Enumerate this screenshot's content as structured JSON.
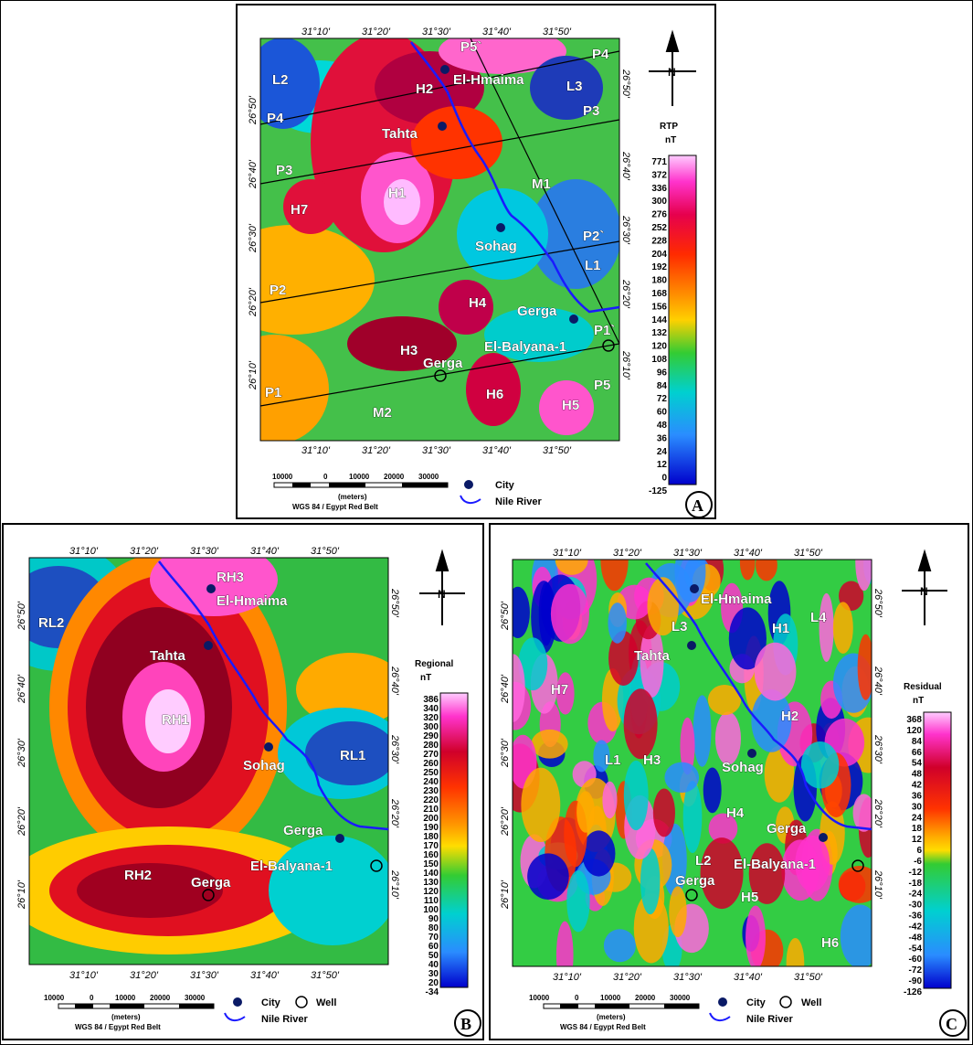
{
  "panels": {
    "A": {
      "letter": "A",
      "colorbar": {
        "title": "RTP",
        "unit": "nT",
        "ticks": [
          "771",
          "372",
          "336",
          "300",
          "276",
          "252",
          "228",
          "204",
          "192",
          "180",
          "168",
          "156",
          "144",
          "132",
          "120",
          "108",
          "96",
          "84",
          "72",
          "60",
          "48",
          "36",
          "24",
          "12",
          "0",
          "-125"
        ]
      },
      "top_lon": [
        "31°10'",
        "31°20'",
        "31°30'",
        "31°40'",
        "31°50'"
      ],
      "bottom_lon": [
        "31°10'",
        "31°20'",
        "31°30'",
        "31°40'",
        "31°50'"
      ],
      "left_lat": [
        "26°50'",
        "26°40'",
        "26°30'",
        "26°20'",
        "26°10'"
      ],
      "right_lat": [
        "26°50'",
        "26°40'",
        "26°30'",
        "26°20'",
        "26°10'"
      ],
      "labels": [
        "L2",
        "P4",
        "H2",
        "El-Hmaima",
        "P5`",
        "P4",
        "L3",
        "P3",
        "Tahta",
        "P3",
        "H1",
        "M1",
        "H7",
        "Sohag",
        "P2`",
        "L1",
        "P2",
        "H4",
        "Gerga",
        "P1`",
        "H3",
        "El-Balyana-1",
        "Gerga",
        "P1",
        "P5",
        "M2",
        "H6",
        "H5"
      ],
      "legend": {
        "city": "City",
        "river": "Nile River"
      },
      "scale": {
        "ticks": [
          "10000",
          "0",
          "10000",
          "20000",
          "30000"
        ],
        "unit": "(meters)",
        "datum": "WGS 84 / Egypt Red Belt"
      }
    },
    "B": {
      "letter": "B",
      "colorbar": {
        "title": "Regional",
        "unit": "nT",
        "ticks": [
          "386",
          "340",
          "320",
          "300",
          "290",
          "280",
          "270",
          "260",
          "250",
          "240",
          "230",
          "220",
          "210",
          "200",
          "190",
          "180",
          "170",
          "160",
          "150",
          "140",
          "130",
          "120",
          "110",
          "100",
          "90",
          "80",
          "70",
          "60",
          "50",
          "40",
          "30",
          "20",
          "-34"
        ]
      },
      "top_lon": [
        "31°10'",
        "31°20'",
        "31°30'",
        "31°40'",
        "31°50'"
      ],
      "bottom_lon": [
        "31°10'",
        "31°20'",
        "31°30'",
        "31°40'",
        "31°50'"
      ],
      "left_lat": [
        "26°50'",
        "26°40'",
        "26°30'",
        "26°20'",
        "26°10'"
      ],
      "right_lat": [
        "26°50'",
        "26°40'",
        "26°30'",
        "26°20'",
        "26°10'"
      ],
      "labels": [
        "RH3",
        "El-Hmaima",
        "RL2",
        "Tahta",
        "RH1",
        "Sohag",
        "RL1",
        "Gerga",
        "El-Balyana-1",
        "RH2",
        "Gerga"
      ],
      "legend": {
        "city": "City",
        "well": "Well",
        "river": "Nile River"
      },
      "scale": {
        "ticks": [
          "10000",
          "0",
          "10000",
          "20000",
          "30000"
        ],
        "unit": "(meters)",
        "datum": "WGS 84 / Egypt Red Belt"
      }
    },
    "C": {
      "letter": "C",
      "colorbar": {
        "title": "Residual",
        "unit": "nT",
        "ticks": [
          "368",
          "120",
          "84",
          "66",
          "54",
          "48",
          "42",
          "36",
          "30",
          "24",
          "18",
          "12",
          "6",
          "-6",
          "-12",
          "-18",
          "-24",
          "-30",
          "-36",
          "-42",
          "-48",
          "-54",
          "-60",
          "-72",
          "-90",
          "-126"
        ]
      },
      "top_lon": [
        "31°10'",
        "31°20'",
        "31°30'",
        "31°40'",
        "31°50'"
      ],
      "bottom_lon": [
        "31°10'",
        "31°20'",
        "31°30'",
        "31°40'",
        "31°50'"
      ],
      "left_lat": [
        "26°50'",
        "26°40'",
        "26°30'",
        "26°20'",
        "26°10'"
      ],
      "right_lat": [
        "26°50'",
        "26°40'",
        "26°30'",
        "26°20'",
        "26°10'"
      ],
      "labels": [
        "El-Hmaima",
        "L3",
        "H1",
        "L4",
        "Tahta",
        "H7",
        "H2",
        "L1",
        "H3",
        "Sohag",
        "H4",
        "Gerga",
        "L2",
        "El-Balyana-1",
        "Gerga",
        "H5",
        "H6"
      ],
      "legend": {
        "city": "City",
        "well": "Well",
        "river": "Nile River"
      },
      "scale": {
        "ticks": [
          "10000",
          "0",
          "10000",
          "20000",
          "30000"
        ],
        "unit": "(meters)",
        "datum": "WGS 84 / Egypt Red Belt"
      }
    }
  },
  "colors": {
    "rtp_ramp": [
      "#ffb3ff",
      "#ff33cc",
      "#e0004a",
      "#ff3300",
      "#ff8800",
      "#ffcc00",
      "#33cc33",
      "#00cccc",
      "#2b8cff",
      "#0000cc"
    ],
    "river": "#1a1aff",
    "city": "#0a1a66"
  }
}
